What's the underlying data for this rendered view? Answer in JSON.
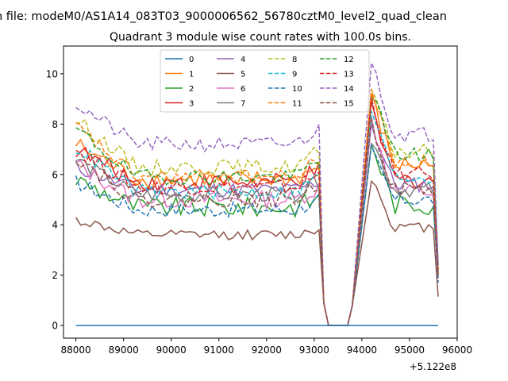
{
  "header_text": "n file: modeM0/AS1A14_083T03_9000006562_56780cztM0_level2_quad_clean",
  "chart_data": {
    "type": "line",
    "title": "Quadrant 3 module wise count rates with 100.0s bins.",
    "xlabel": "",
    "ylabel": "",
    "x_offset_label": "+5.122e8",
    "xlim": [
      87740,
      96000
    ],
    "ylim": [
      -0.5,
      11.1
    ],
    "x_ticks": [
      88000,
      89000,
      90000,
      91000,
      92000,
      93000,
      94000,
      95000,
      96000
    ],
    "x_tick_labels": [
      "88000",
      "89000",
      "90000",
      "91000",
      "92000",
      "93000",
      "94000",
      "95000",
      "96000"
    ],
    "y_ticks": [
      0,
      2,
      4,
      6,
      8,
      10
    ],
    "y_tick_labels": [
      "0",
      "2",
      "4",
      "6",
      "8",
      "10"
    ],
    "grid": false,
    "legend_position": "top-center",
    "legend_columns": 4,
    "segments": {
      "x_start": 88000,
      "x_step": 100,
      "pre_gap_end": 93100,
      "gap_values": [
        0.9,
        0,
        0,
        0,
        0,
        0,
        0.8
      ],
      "gap_start": 93200,
      "post_gap_start": 94200,
      "post_gap_end": 95600
    },
    "series": [
      {
        "name": "0",
        "color": "#1f77b4",
        "dashed": false,
        "base": 0.0,
        "start": 0.0,
        "flare": 0.0,
        "end_level": 0.0,
        "tail": 0.0,
        "wiggle": 0.0
      },
      {
        "name": "1",
        "color": "#ff7f0e",
        "dashed": false,
        "base": 5.8,
        "start": 7.2,
        "flare": 9.0,
        "end_level": 6.4,
        "tail": 2.0,
        "wiggle": 0.35
      },
      {
        "name": "2",
        "color": "#2ca02c",
        "dashed": false,
        "base": 4.7,
        "start": 5.8,
        "flare": 7.3,
        "end_level": 4.8,
        "tail": 2.1,
        "wiggle": 0.4
      },
      {
        "name": "3",
        "color": "#d62728",
        "dashed": false,
        "base": 5.7,
        "start": 7.0,
        "flare": 8.6,
        "end_level": 5.8,
        "tail": 2.2,
        "wiggle": 0.35
      },
      {
        "name": "4",
        "color": "#9467bd",
        "dashed": false,
        "base": 5.4,
        "start": 6.3,
        "flare": 8.0,
        "end_level": 5.6,
        "tail": 2.0,
        "wiggle": 0.3
      },
      {
        "name": "5",
        "color": "#8c564b",
        "dashed": false,
        "base": 3.6,
        "start": 4.2,
        "flare": 5.9,
        "end_level": 3.9,
        "tail": 1.15,
        "wiggle": 0.2
      },
      {
        "name": "6",
        "color": "#e377c2",
        "dashed": false,
        "base": 5.0,
        "start": 6.4,
        "flare": 8.2,
        "end_level": 5.3,
        "tail": 1.9,
        "wiggle": 0.35
      },
      {
        "name": "7",
        "color": "#7f7f7f",
        "dashed": false,
        "base": 5.2,
        "start": 6.6,
        "flare": 7.4,
        "end_level": 5.4,
        "tail": 2.0,
        "wiggle": 0.3
      },
      {
        "name": "8",
        "color": "#bcbd22",
        "dashed": true,
        "base": 6.3,
        "start": 8.2,
        "flare": 9.2,
        "end_level": 6.9,
        "tail": 2.3,
        "wiggle": 0.3
      },
      {
        "name": "9",
        "color": "#17becf",
        "dashed": true,
        "base": 5.3,
        "start": 7.1,
        "flare": 8.6,
        "end_level": 5.9,
        "tail": 2.0,
        "wiggle": 0.3
      },
      {
        "name": "10",
        "color": "#1f77b4",
        "dashed": true,
        "base": 4.6,
        "start": 5.7,
        "flare": 6.9,
        "end_level": 5.0,
        "tail": 1.7,
        "wiggle": 0.3
      },
      {
        "name": "11",
        "color": "#ff7f0e",
        "dashed": true,
        "base": 5.9,
        "start": 7.9,
        "flare": 9.4,
        "end_level": 6.5,
        "tail": 2.1,
        "wiggle": 0.3
      },
      {
        "name": "12",
        "color": "#2ca02c",
        "dashed": true,
        "base": 5.9,
        "start": 7.8,
        "flare": 9.3,
        "end_level": 6.8,
        "tail": 2.4,
        "wiggle": 0.3
      },
      {
        "name": "13",
        "color": "#d62728",
        "dashed": true,
        "base": 5.5,
        "start": 7.0,
        "flare": 9.0,
        "end_level": 6.0,
        "tail": 2.2,
        "wiggle": 0.3
      },
      {
        "name": "14",
        "color": "#9467bd",
        "dashed": true,
        "base": 7.2,
        "start": 8.8,
        "flare": 10.6,
        "end_level": 7.6,
        "tail": 2.4,
        "wiggle": 0.3
      },
      {
        "name": "15",
        "color": "#8c564b",
        "dashed": true,
        "base": 5.0,
        "start": 6.7,
        "flare": 8.1,
        "end_level": 5.4,
        "tail": 1.9,
        "wiggle": 0.3
      }
    ]
  }
}
